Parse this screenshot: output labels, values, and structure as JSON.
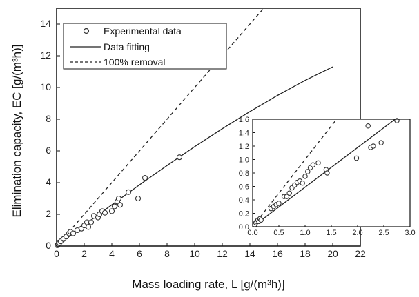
{
  "chart_data": [
    {
      "type": "scatter",
      "title": "",
      "xlabel": "Mass loading rate, L [g/(m³h)]",
      "ylabel": "Elimination capacity, EC [g/(m³h)]",
      "xlim": [
        0,
        22
      ],
      "ylim": [
        0,
        15
      ],
      "xticks": [
        "0",
        "2",
        "4",
        "6",
        "8",
        "10",
        "12",
        "14",
        "16",
        "18",
        "20",
        "22"
      ],
      "yticks": [
        "0",
        "2",
        "4",
        "6",
        "8",
        "10",
        "12",
        "14"
      ],
      "legend": {
        "placement": "top-left",
        "entries": [
          "Experimental data",
          "Data fitting",
          "100% removal"
        ]
      },
      "grid": false,
      "series": [
        {
          "name": "Experimental data",
          "style": "open-circle",
          "points": [
            [
              0.05,
              0.05
            ],
            [
              0.1,
              0.1
            ],
            [
              0.2,
              0.2
            ],
            [
              0.3,
              0.3
            ],
            [
              0.5,
              0.45
            ],
            [
              0.7,
              0.6
            ],
            [
              0.9,
              0.8
            ],
            [
              1.0,
              0.9
            ],
            [
              1.2,
              0.8
            ],
            [
              1.5,
              1.0
            ],
            [
              1.8,
              1.1
            ],
            [
              2.0,
              1.3
            ],
            [
              2.2,
              1.5
            ],
            [
              2.3,
              1.2
            ],
            [
              2.5,
              1.5
            ],
            [
              2.7,
              1.9
            ],
            [
              3.0,
              1.8
            ],
            [
              3.1,
              2.0
            ],
            [
              3.3,
              2.2
            ],
            [
              3.5,
              2.1
            ],
            [
              4.0,
              2.2
            ],
            [
              4.2,
              2.5
            ],
            [
              4.4,
              2.8
            ],
            [
              4.5,
              3.0
            ],
            [
              4.6,
              2.6
            ],
            [
              5.2,
              3.4
            ],
            [
              5.9,
              3.0
            ],
            [
              6.4,
              4.3
            ],
            [
              8.9,
              5.6
            ]
          ]
        },
        {
          "name": "Data fitting",
          "style": "solid",
          "points": [
            [
              0,
              0
            ],
            [
              2,
              1.32
            ],
            [
              4,
              2.6
            ],
            [
              6,
              3.86
            ],
            [
              8,
              5.08
            ],
            [
              10,
              6.27
            ],
            [
              12,
              7.4
            ],
            [
              14,
              8.48
            ],
            [
              16,
              9.5
            ],
            [
              18,
              10.45
            ],
            [
              20,
              11.3
            ]
          ]
        },
        {
          "name": "100% removal",
          "style": "dashed",
          "points": [
            [
              0,
              0
            ],
            [
              15,
              15
            ]
          ]
        }
      ]
    },
    {
      "type": "scatter",
      "title": "",
      "xlabel": "",
      "ylabel": "",
      "xlim": [
        0,
        3.0
      ],
      "ylim": [
        0,
        1.6
      ],
      "xticks": [
        "0.0",
        "0.5",
        "1.0",
        "1.5",
        "2.0",
        "2.5",
        "3.0"
      ],
      "yticks": [
        "0.0",
        "0.2",
        "0.4",
        "0.6",
        "0.8",
        "1.0",
        "1.2",
        "1.4",
        "1.6"
      ],
      "grid": false,
      "series": [
        {
          "name": "Experimental data",
          "style": "open-circle",
          "points": [
            [
              0.04,
              0.03
            ],
            [
              0.06,
              0.06
            ],
            [
              0.08,
              0.08
            ],
            [
              0.1,
              0.1
            ],
            [
              0.12,
              0.08
            ],
            [
              0.14,
              0.12
            ],
            [
              0.16,
              0.1
            ],
            [
              0.35,
              0.27
            ],
            [
              0.4,
              0.3
            ],
            [
              0.45,
              0.33
            ],
            [
              0.5,
              0.35
            ],
            [
              0.6,
              0.45
            ],
            [
              0.65,
              0.45
            ],
            [
              0.7,
              0.5
            ],
            [
              0.75,
              0.58
            ],
            [
              0.8,
              0.62
            ],
            [
              0.85,
              0.66
            ],
            [
              0.9,
              0.68
            ],
            [
              0.95,
              0.65
            ],
            [
              1.0,
              0.75
            ],
            [
              1.05,
              0.82
            ],
            [
              1.1,
              0.88
            ],
            [
              1.15,
              0.92
            ],
            [
              1.25,
              0.95
            ],
            [
              1.4,
              0.85
            ],
            [
              1.42,
              0.8
            ],
            [
              1.98,
              1.02
            ],
            [
              2.2,
              1.5
            ],
            [
              2.25,
              1.18
            ],
            [
              2.3,
              1.2
            ],
            [
              2.45,
              1.25
            ],
            [
              2.75,
              1.58
            ]
          ]
        },
        {
          "name": "Data fitting",
          "style": "solid",
          "points": [
            [
              0,
              0
            ],
            [
              2.8,
              1.65
            ]
          ]
        },
        {
          "name": "100% removal",
          "style": "dashed",
          "points": [
            [
              0,
              0
            ],
            [
              1.6,
              1.6
            ]
          ]
        }
      ]
    }
  ]
}
